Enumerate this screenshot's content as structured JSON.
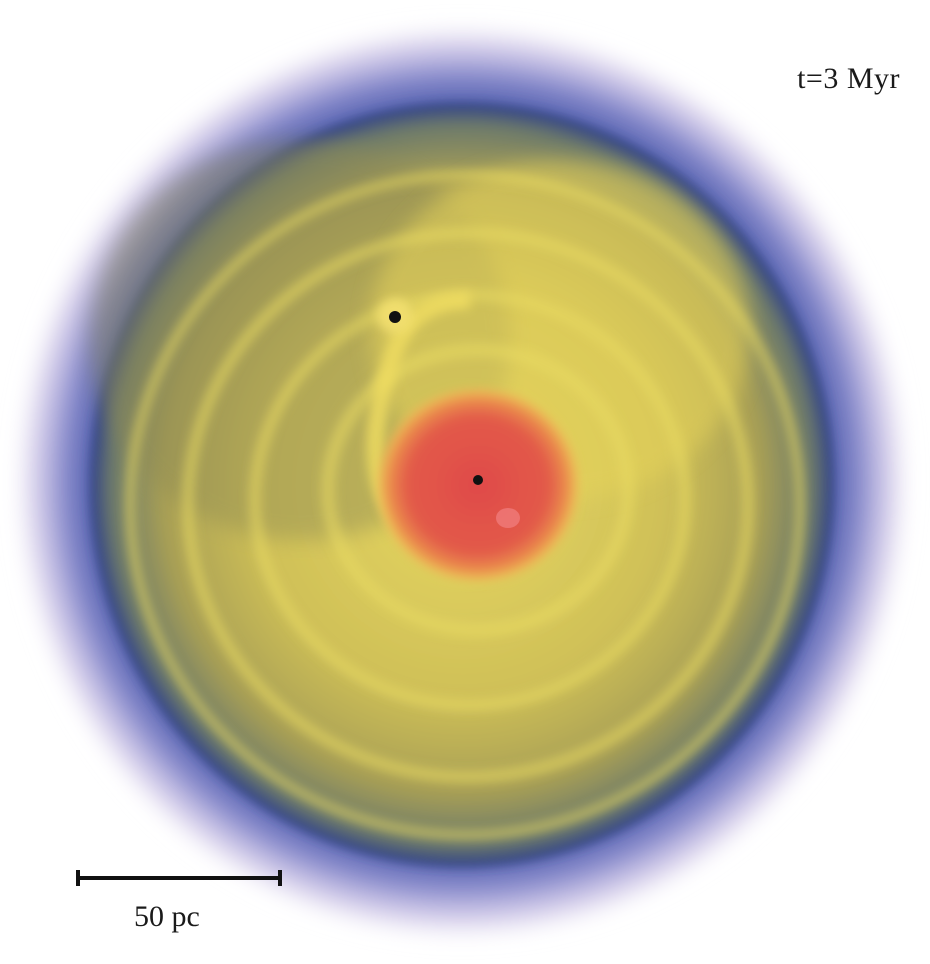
{
  "annotation": {
    "time": "t=3 Myr",
    "scale": "50 pc"
  },
  "colors": {
    "outer_halo": "#b8a8dc",
    "blue_ring": "#1f3a9a",
    "disk_olive": "#b3aa55",
    "disk_yellow": "#e6d75a",
    "core_red": "#e0524a",
    "black_hole": "#111111"
  },
  "icons": {
    "central_object": "black-dot-icon",
    "satellite_object": "black-dot-icon"
  }
}
